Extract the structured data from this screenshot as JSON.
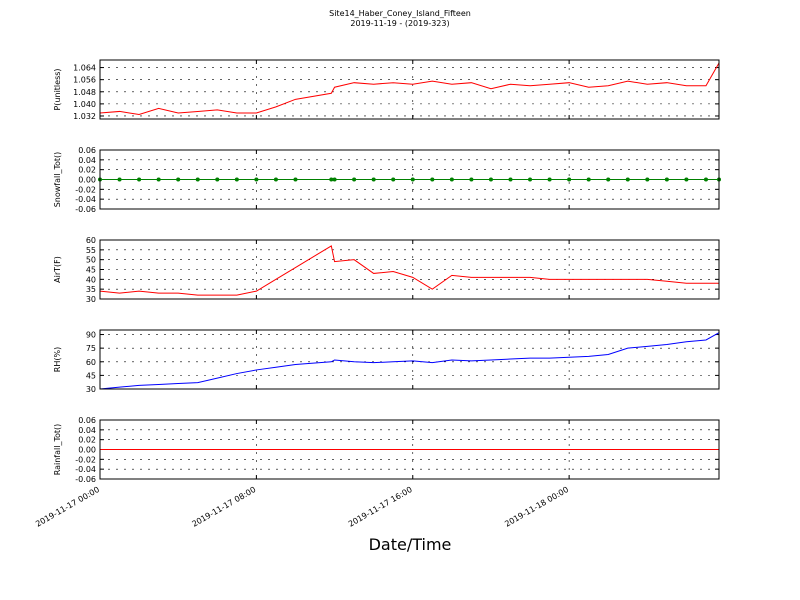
{
  "chart_data": [
    {
      "type": "line",
      "title": "Site14_Haber_Coney_Island_Fifteen",
      "subtitle": "2019-11-19 - (2019-323)",
      "ylabel": "P(unitless)",
      "ylim": [
        1.03,
        1.069
      ],
      "yticks": [
        1.032,
        {
          "value": 1.04,
          "label": "1.040"
        },
        1.048,
        1.056,
        1.064
      ],
      "grid": true,
      "series": [
        {
          "color": "#ff0000",
          "values": [
            1.034,
            1.035,
            1.033,
            1.037,
            1.034,
            1.035,
            1.036,
            1.034,
            1.034,
            1.038,
            1.043,
            1.047,
            1.051,
            1.054,
            1.053,
            1.054,
            1.053,
            1.055,
            1.053,
            1.054,
            1.05,
            1.053,
            1.052,
            1.053,
            1.054,
            1.051,
            1.052,
            1.055,
            1.053,
            1.054,
            1.052,
            1.052,
            1.067
          ]
        }
      ]
    },
    {
      "type": "line",
      "ylabel": "Snowfall_Tot()",
      "marker": true,
      "ylim": [
        -0.06,
        0.06
      ],
      "yticks": [
        -0.06,
        -0.04,
        -0.02,
        {
          "value": 0,
          "label": "0.00"
        },
        0.02,
        0.04,
        0.06
      ],
      "grid": true,
      "series": [
        {
          "color": "#008000",
          "values": [
            0,
            0,
            0,
            0,
            0,
            0,
            0,
            0,
            0,
            0,
            0,
            0,
            0,
            0,
            0,
            0,
            0,
            0,
            0,
            0,
            0,
            0,
            0,
            0,
            0,
            0,
            0,
            0,
            0,
            0,
            0,
            0,
            0
          ]
        }
      ]
    },
    {
      "type": "line",
      "ylabel": "AirT(F)",
      "ylim": [
        30,
        60
      ],
      "yticks": [
        30,
        35,
        40,
        45,
        50,
        55,
        60
      ],
      "grid": true,
      "series": [
        {
          "color": "#ff0000",
          "values": [
            34,
            33,
            34,
            33,
            33,
            32,
            32,
            32,
            34,
            40,
            46,
            57,
            49,
            50,
            43,
            44,
            41,
            35,
            42,
            41,
            41,
            41,
            41,
            40,
            40,
            40,
            40,
            40,
            40,
            39,
            38,
            38,
            38
          ]
        }
      ]
    },
    {
      "type": "line",
      "ylabel": "RH(%)",
      "ylim": [
        30,
        95
      ],
      "yticks": [
        30,
        45,
        60,
        75,
        90
      ],
      "grid": true,
      "series": [
        {
          "color": "#0000ff",
          "values": [
            30,
            32,
            34,
            35,
            36,
            37,
            42,
            47,
            51,
            54,
            57,
            60,
            62,
            60,
            59,
            60,
            61,
            59,
            62,
            61,
            62,
            63,
            64,
            64,
            65,
            66,
            68,
            75,
            77,
            79,
            82,
            84,
            92
          ]
        }
      ]
    },
    {
      "type": "line",
      "ylabel": "Rainfall_Tot()",
      "xlabel": "Date/Time",
      "ylim": [
        -0.06,
        0.06
      ],
      "yticks": [
        -0.06,
        -0.04,
        -0.02,
        {
          "value": 0,
          "label": "0.00"
        },
        0.02,
        0.04,
        0.06
      ],
      "grid": true,
      "xlim": [
        "2019-11-17 00:00",
        "2019-11-18 07:40"
      ],
      "xticks": [
        "2019-11-17 00:00",
        "2019-11-17 08:00",
        "2019-11-17 16:00",
        "2019-11-18 00:00"
      ],
      "x": [
        "2019-11-17 00:00",
        "2019-11-17 01:00",
        "2019-11-17 02:00",
        "2019-11-17 03:00",
        "2019-11-17 04:00",
        "2019-11-17 05:00",
        "2019-11-17 06:00",
        "2019-11-17 07:00",
        "2019-11-17 08:00",
        "2019-11-17 09:00",
        "2019-11-17 10:00",
        "2019-11-17 11:50",
        "2019-11-17 12:00",
        "2019-11-17 13:00",
        "2019-11-17 14:00",
        "2019-11-17 15:00",
        "2019-11-17 16:00",
        "2019-11-17 17:00",
        "2019-11-17 18:00",
        "2019-11-17 19:00",
        "2019-11-17 20:00",
        "2019-11-17 21:00",
        "2019-11-17 22:00",
        "2019-11-17 23:00",
        "2019-11-18 00:00",
        "2019-11-18 01:00",
        "2019-11-18 02:00",
        "2019-11-18 03:00",
        "2019-11-18 04:00",
        "2019-11-18 05:00",
        "2019-11-18 06:00",
        "2019-11-18 07:00",
        "2019-11-18 07:40"
      ],
      "series": [
        {
          "color": "#ff0000",
          "values": [
            0,
            0,
            0,
            0,
            0,
            0,
            0,
            0,
            0,
            0,
            0,
            0,
            0,
            0,
            0,
            0,
            0,
            0,
            0,
            0,
            0,
            0,
            0,
            0,
            0,
            0,
            0,
            0,
            0,
            0,
            0,
            0,
            0
          ]
        }
      ]
    }
  ]
}
